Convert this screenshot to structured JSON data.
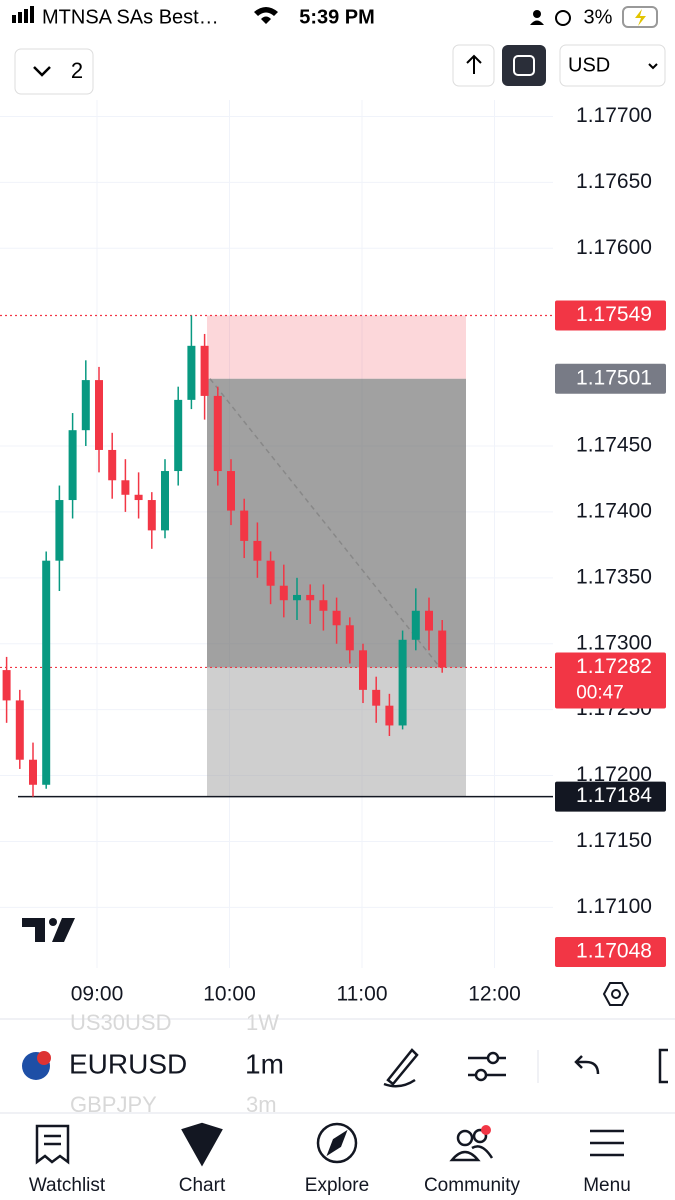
{
  "status_bar": {
    "carrier": "MTNSA SAs Best…",
    "time": "5:39 PM",
    "battery": "3%"
  },
  "toolbar": {
    "layout_count": "2",
    "currency": "USD"
  },
  "chart_data": {
    "type": "candlestick",
    "ylim": [
      1.17054,
      1.17758
    ],
    "yticks": [
      {
        "value": 1.177,
        "label": "1.17700"
      },
      {
        "value": 1.1765,
        "label": "1.17650"
      },
      {
        "value": 1.176,
        "label": "1.17600"
      },
      {
        "value": 1.1745,
        "label": "1.17450"
      },
      {
        "value": 1.174,
        "label": "1.17400"
      },
      {
        "value": 1.1735,
        "label": "1.17350"
      },
      {
        "value": 1.173,
        "label": "1.17300"
      },
      {
        "value": 1.1725,
        "label": "1.17250"
      },
      {
        "value": 1.172,
        "label": "1.17200"
      },
      {
        "value": 1.1715,
        "label": "1.17150"
      },
      {
        "value": 1.171,
        "label": "1.17100"
      }
    ],
    "xticks": [
      "09:00",
      "10:00",
      "11:00",
      "12:00"
    ],
    "up_color": "#089981",
    "down_color": "#f23645",
    "candles": [
      [
        1.1728,
        1.1729,
        1.1724,
        1.17257
      ],
      [
        1.17257,
        1.17265,
        1.17205,
        1.17212
      ],
      [
        1.17212,
        1.17225,
        1.17184,
        1.17193
      ],
      [
        1.17193,
        1.1737,
        1.1719,
        1.17363
      ],
      [
        1.17363,
        1.1742,
        1.1734,
        1.17409
      ],
      [
        1.17409,
        1.17475,
        1.17395,
        1.17462
      ],
      [
        1.17462,
        1.17515,
        1.1745,
        1.175
      ],
      [
        1.175,
        1.1751,
        1.1743,
        1.17447
      ],
      [
        1.17447,
        1.1746,
        1.1741,
        1.17424
      ],
      [
        1.17424,
        1.1744,
        1.174,
        1.17413
      ],
      [
        1.17413,
        1.1743,
        1.17395,
        1.17409
      ],
      [
        1.17409,
        1.17415,
        1.17372,
        1.17386
      ],
      [
        1.17386,
        1.1744,
        1.1738,
        1.17431
      ],
      [
        1.17431,
        1.17495,
        1.1742,
        1.17485
      ],
      [
        1.17485,
        1.17549,
        1.17478,
        1.17526
      ],
      [
        1.17526,
        1.17535,
        1.1747,
        1.17488
      ],
      [
        1.17488,
        1.17495,
        1.1742,
        1.17431
      ],
      [
        1.17431,
        1.1744,
        1.1739,
        1.17401
      ],
      [
        1.17401,
        1.1741,
        1.17365,
        1.17378
      ],
      [
        1.17378,
        1.17392,
        1.1735,
        1.17363
      ],
      [
        1.17363,
        1.1737,
        1.1733,
        1.17344
      ],
      [
        1.17344,
        1.1736,
        1.1732,
        1.17333
      ],
      [
        1.17333,
        1.1735,
        1.17318,
        1.17337
      ],
      [
        1.17337,
        1.17345,
        1.17315,
        1.17333
      ],
      [
        1.17333,
        1.17345,
        1.1731,
        1.17325
      ],
      [
        1.17325,
        1.17335,
        1.173,
        1.17314
      ],
      [
        1.17314,
        1.1732,
        1.17285,
        1.17295
      ],
      [
        1.17295,
        1.173,
        1.17255,
        1.17265
      ],
      [
        1.17265,
        1.17275,
        1.1724,
        1.17253
      ],
      [
        1.17253,
        1.17262,
        1.1723,
        1.17238
      ],
      [
        1.17238,
        1.1731,
        1.17235,
        1.17303
      ],
      [
        1.17303,
        1.17342,
        1.17295,
        1.17325
      ],
      [
        1.17325,
        1.17335,
        1.17295,
        1.1731
      ],
      [
        1.1731,
        1.17318,
        1.17278,
        1.17282
      ]
    ],
    "price_labels": [
      {
        "value": 1.17549,
        "color": "#f23645",
        "line": "dotted"
      },
      {
        "value": 1.17501,
        "color": "#787b86"
      },
      {
        "value": 1.17282,
        "color": "#f23645",
        "line": "dotted"
      },
      {
        "value": 1.17184,
        "color": "#131722",
        "line": "solid"
      },
      {
        "value": 1.17048,
        "color": "#f23645"
      }
    ],
    "countdown": "00:47"
  },
  "symbol_bar": {
    "symbol": "EURUSD",
    "interval": "1m",
    "ghost_above": [
      "US30USD",
      "1W"
    ],
    "ghost_below": [
      "GBPJPY",
      "3m"
    ]
  },
  "nav": [
    "Watchlist",
    "Chart",
    "Explore",
    "Community",
    "Menu"
  ]
}
